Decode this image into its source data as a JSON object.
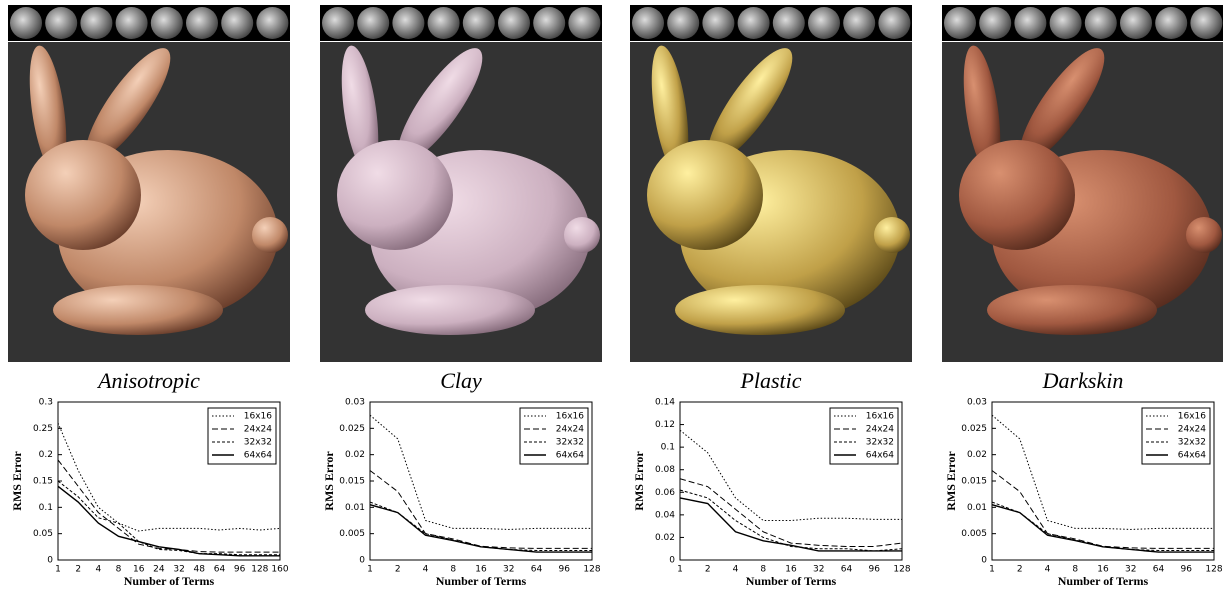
{
  "chart_data": [
    {
      "type": "line",
      "title": "Anisotropic",
      "xlabel": "Number of Terms",
      "ylabel": "RMS Error",
      "legend": "upper right",
      "categories": [
        "1",
        "2",
        "4",
        "8",
        "16",
        "24",
        "32",
        "48",
        "64",
        "96",
        "128",
        "160"
      ],
      "ylim": [
        0,
        0.3
      ],
      "yticks": [
        0,
        0.05,
        0.1,
        0.15,
        0.2,
        0.25,
        0.3
      ],
      "series": [
        {
          "name": "16x16",
          "color": "#000000",
          "line_style": "dotted",
          "values": [
            0.26,
            0.17,
            0.1,
            0.07,
            0.055,
            0.06,
            0.06,
            0.06,
            0.057,
            0.06,
            0.057,
            0.06
          ]
        },
        {
          "name": "24x24",
          "color": "#000000",
          "line_style": "dashed",
          "values": [
            0.19,
            0.14,
            0.09,
            0.06,
            0.03,
            0.022,
            0.02,
            0.016,
            0.015,
            0.015,
            0.015,
            0.015
          ]
        },
        {
          "name": "32x32",
          "color": "#000000",
          "line_style": "short-dashed",
          "values": [
            0.15,
            0.12,
            0.08,
            0.07,
            0.035,
            0.02,
            0.018,
            0.012,
            0.012,
            0.01,
            0.01,
            0.01
          ]
        },
        {
          "name": "64x64",
          "color": "#000000",
          "line_style": "solid",
          "values": [
            0.14,
            0.11,
            0.07,
            0.045,
            0.035,
            0.025,
            0.02,
            0.012,
            0.01,
            0.008,
            0.008,
            0.008
          ]
        }
      ]
    },
    {
      "type": "line",
      "title": "Clay",
      "xlabel": "Number of Terms",
      "ylabel": "RMS Error",
      "legend": "upper right",
      "categories": [
        "1",
        "2",
        "4",
        "8",
        "16",
        "32",
        "64",
        "96",
        "128"
      ],
      "ylim": [
        0,
        0.03
      ],
      "yticks": [
        0,
        0.005,
        0.01,
        0.015,
        0.02,
        0.025,
        0.03
      ],
      "series": [
        {
          "name": "16x16",
          "color": "#000000",
          "line_style": "dotted",
          "values": [
            0.0275,
            0.023,
            0.0075,
            0.006,
            0.006,
            0.0058,
            0.006,
            0.006,
            0.006
          ]
        },
        {
          "name": "24x24",
          "color": "#000000",
          "line_style": "dashed",
          "values": [
            0.017,
            0.013,
            0.005,
            0.004,
            0.0026,
            0.0023,
            0.0022,
            0.0022,
            0.0022
          ]
        },
        {
          "name": "32x32",
          "color": "#000000",
          "line_style": "short-dashed",
          "values": [
            0.011,
            0.009,
            0.005,
            0.0038,
            0.0025,
            0.002,
            0.0018,
            0.0018,
            0.0018
          ]
        },
        {
          "name": "64x64",
          "color": "#000000",
          "line_style": "solid",
          "values": [
            0.0105,
            0.009,
            0.0047,
            0.0037,
            0.0025,
            0.002,
            0.0015,
            0.0015,
            0.0015
          ]
        }
      ]
    },
    {
      "type": "line",
      "title": "Plastic",
      "xlabel": "Number of Terms",
      "ylabel": "RMS Error",
      "legend": "upper right",
      "categories": [
        "1",
        "2",
        "4",
        "8",
        "16",
        "32",
        "64",
        "96",
        "128"
      ],
      "ylim": [
        0,
        0.14
      ],
      "yticks": [
        0,
        0.02,
        0.04,
        0.06,
        0.08,
        0.1,
        0.12,
        0.14
      ],
      "series": [
        {
          "name": "16x16",
          "color": "#000000",
          "line_style": "dotted",
          "values": [
            0.115,
            0.095,
            0.055,
            0.035,
            0.035,
            0.037,
            0.037,
            0.036,
            0.036
          ]
        },
        {
          "name": "24x24",
          "color": "#000000",
          "line_style": "dashed",
          "values": [
            0.072,
            0.065,
            0.045,
            0.025,
            0.015,
            0.013,
            0.012,
            0.012,
            0.015
          ]
        },
        {
          "name": "32x32",
          "color": "#000000",
          "line_style": "short-dashed",
          "values": [
            0.062,
            0.055,
            0.035,
            0.02,
            0.012,
            0.01,
            0.01,
            0.008,
            0.01
          ]
        },
        {
          "name": "64x64",
          "color": "#000000",
          "line_style": "solid",
          "values": [
            0.055,
            0.05,
            0.025,
            0.017,
            0.013,
            0.008,
            0.008,
            0.008,
            0.008
          ]
        }
      ]
    },
    {
      "type": "line",
      "title": "Darkskin",
      "xlabel": "Number of Terms",
      "ylabel": "RMS Error",
      "legend": "upper right",
      "categories": [
        "1",
        "2",
        "4",
        "8",
        "16",
        "32",
        "64",
        "96",
        "128"
      ],
      "ylim": [
        0,
        0.03
      ],
      "yticks": [
        0,
        0.005,
        0.01,
        0.015,
        0.02,
        0.025,
        0.03
      ],
      "series": [
        {
          "name": "16x16",
          "color": "#000000",
          "line_style": "dotted",
          "values": [
            0.0275,
            0.023,
            0.0075,
            0.006,
            0.006,
            0.0058,
            0.006,
            0.006,
            0.006
          ]
        },
        {
          "name": "24x24",
          "color": "#000000",
          "line_style": "dashed",
          "values": [
            0.017,
            0.013,
            0.005,
            0.004,
            0.0026,
            0.0023,
            0.0022,
            0.0022,
            0.0022
          ]
        },
        {
          "name": "32x32",
          "color": "#000000",
          "line_style": "short-dashed",
          "values": [
            0.011,
            0.009,
            0.005,
            0.0038,
            0.0025,
            0.002,
            0.0018,
            0.0018,
            0.0018
          ]
        },
        {
          "name": "64x64",
          "color": "#000000",
          "line_style": "solid",
          "values": [
            0.0105,
            0.009,
            0.0047,
            0.0037,
            0.0025,
            0.002,
            0.0015,
            0.0015,
            0.0015
          ]
        }
      ]
    }
  ]
}
